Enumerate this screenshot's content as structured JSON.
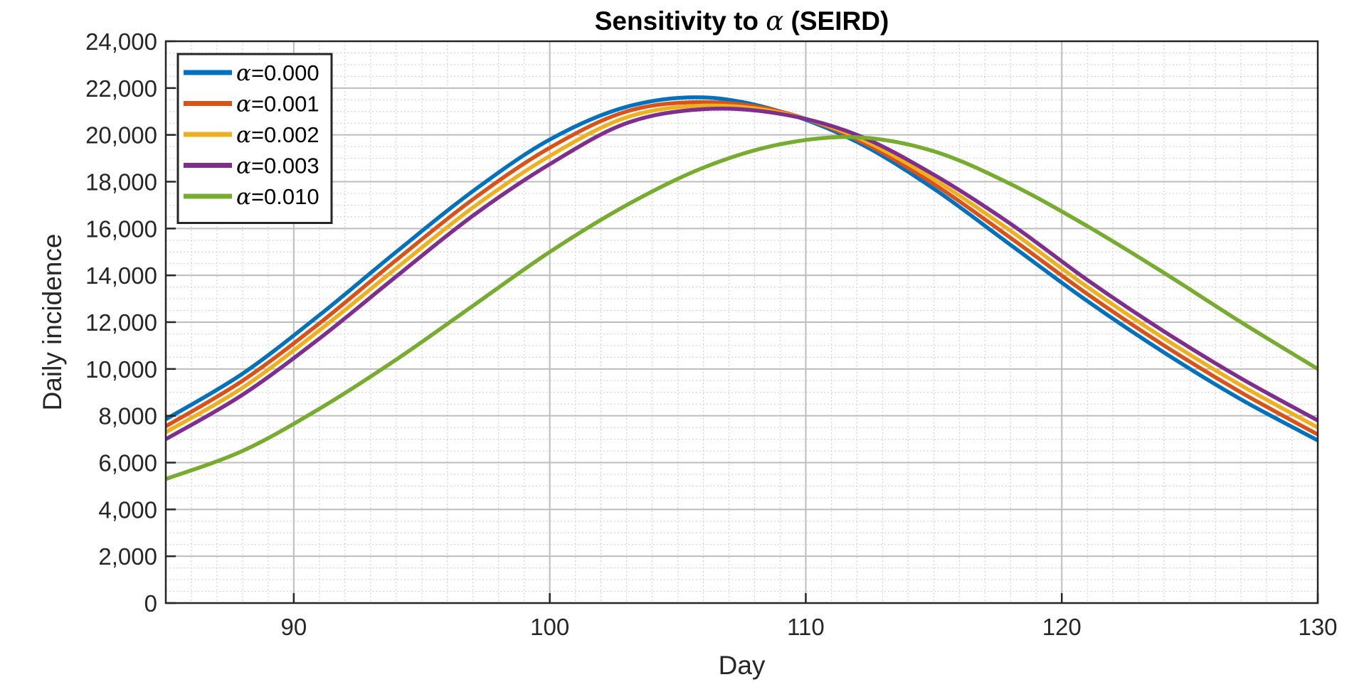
{
  "chart_data": {
    "type": "line",
    "title_prefix": "Sensitivity to ",
    "title_symbol": "α",
    "title_suffix": " (SEIRD)",
    "xlabel": "Day",
    "ylabel": "Daily incidence",
    "xlim": [
      85,
      130
    ],
    "ylim": [
      0,
      24000
    ],
    "xticks": [
      90,
      100,
      110,
      120,
      130
    ],
    "yticks": [
      0,
      2000,
      4000,
      6000,
      8000,
      10000,
      12000,
      14000,
      16000,
      18000,
      20000,
      22000,
      24000
    ],
    "ytick_labels": [
      "0",
      "2,000",
      "4,000",
      "6,000",
      "8,000",
      "10,000",
      "12,000",
      "14,000",
      "16,000",
      "18,000",
      "20,000",
      "22,000",
      "24,000"
    ],
    "grid": true,
    "minor_grid": true,
    "legend_position": "top-left",
    "x": [
      85,
      88,
      91,
      94,
      97,
      100,
      103,
      106,
      109,
      112,
      115,
      118,
      121,
      124,
      127,
      130
    ],
    "series": [
      {
        "name_symbol": "α",
        "name_value": "=0.000",
        "color": "#0072BD",
        "values": [
          7850,
          9800,
          12300,
          15000,
          17600,
          19800,
          21200,
          21600,
          21000,
          19700,
          17700,
          15300,
          12900,
          10700,
          8700,
          6950
        ]
      },
      {
        "name_symbol": "α",
        "name_value": "=0.001",
        "color": "#D95319",
        "values": [
          7550,
          9500,
          11950,
          14650,
          17250,
          19450,
          21000,
          21400,
          21000,
          19800,
          17900,
          15600,
          13200,
          11000,
          9000,
          7200
        ]
      },
      {
        "name_symbol": "α",
        "name_value": "=0.002",
        "color": "#EDB120",
        "values": [
          7300,
          9200,
          11650,
          14300,
          16900,
          19100,
          20750,
          21250,
          20950,
          19900,
          18100,
          15900,
          13500,
          11300,
          9300,
          7500
        ]
      },
      {
        "name_symbol": "α",
        "name_value": "=0.003",
        "color": "#7E2F8E",
        "values": [
          7000,
          8900,
          11300,
          13950,
          16550,
          18750,
          20500,
          21100,
          20900,
          20000,
          18300,
          16200,
          13800,
          11600,
          9600,
          7800
        ]
      },
      {
        "name_symbol": "α",
        "name_value": "=0.010",
        "color": "#77AC30",
        "values": [
          5300,
          6500,
          8300,
          10400,
          12700,
          15000,
          17000,
          18600,
          19600,
          19900,
          19300,
          17900,
          16100,
          14100,
          12000,
          10000
        ]
      }
    ]
  }
}
